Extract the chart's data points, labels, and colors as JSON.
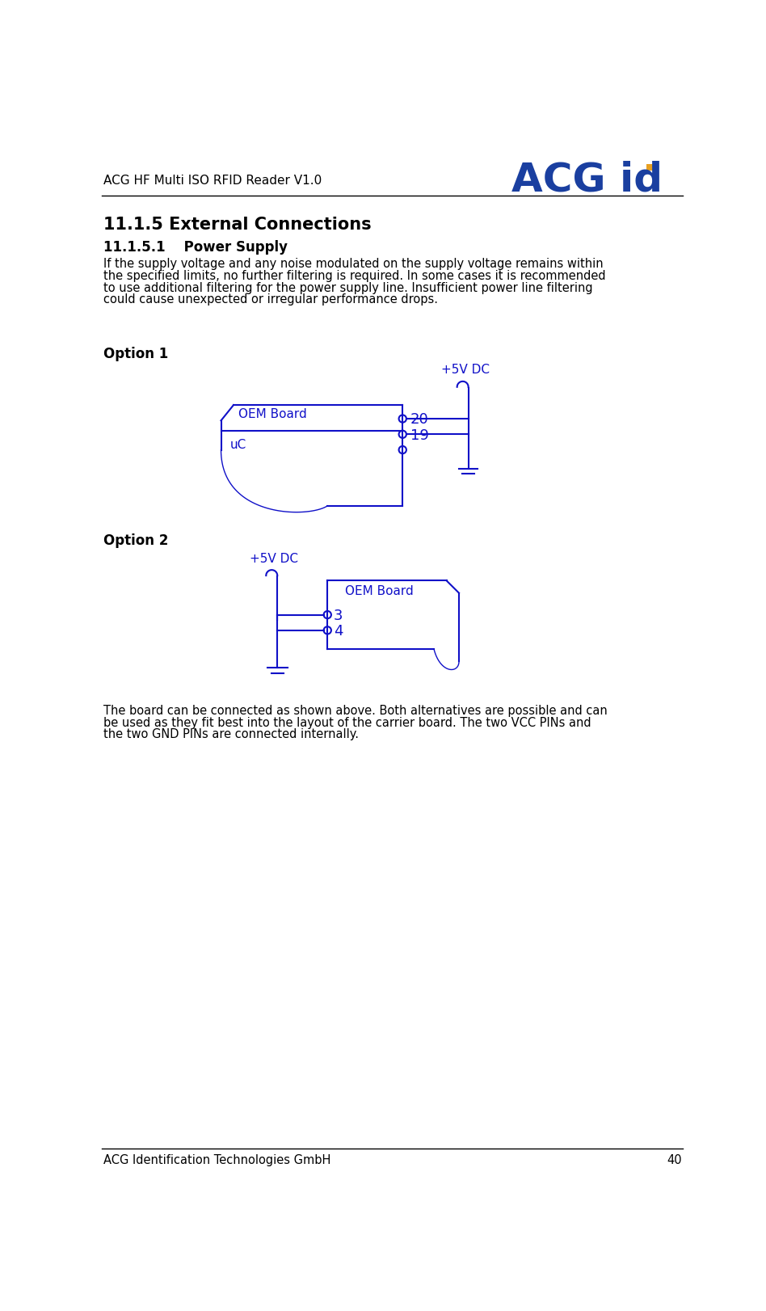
{
  "page_title": "ACG HF Multi ISO RFID Reader V1.0",
  "page_number": "40",
  "footer_text": "ACG Identification Technologies GmbH",
  "section_title": "11.1.5 External Connections",
  "subsection_title": "11.1.5.1    Power Supply",
  "body_text": "If the supply voltage and any noise modulated on the supply voltage remains within\nthe specified limits, no further filtering is required. In some cases it is recommended\nto use additional filtering for the power supply line. Insufficient power line filtering\ncould cause unexpected or irregular performance drops.",
  "option1_label": "Option 1",
  "option2_label": "Option 2",
  "closing_text": "The board can be connected as shown above. Both alternatives are possible and can\nbe used as they fit best into the layout of the carrier board. The two VCC PINs and\nthe two GND PINs are connected internally.",
  "blue_color": "#1010c8",
  "black_color": "#000000",
  "logo_blue": "#1a3fa0",
  "logo_orange": "#e8a020"
}
